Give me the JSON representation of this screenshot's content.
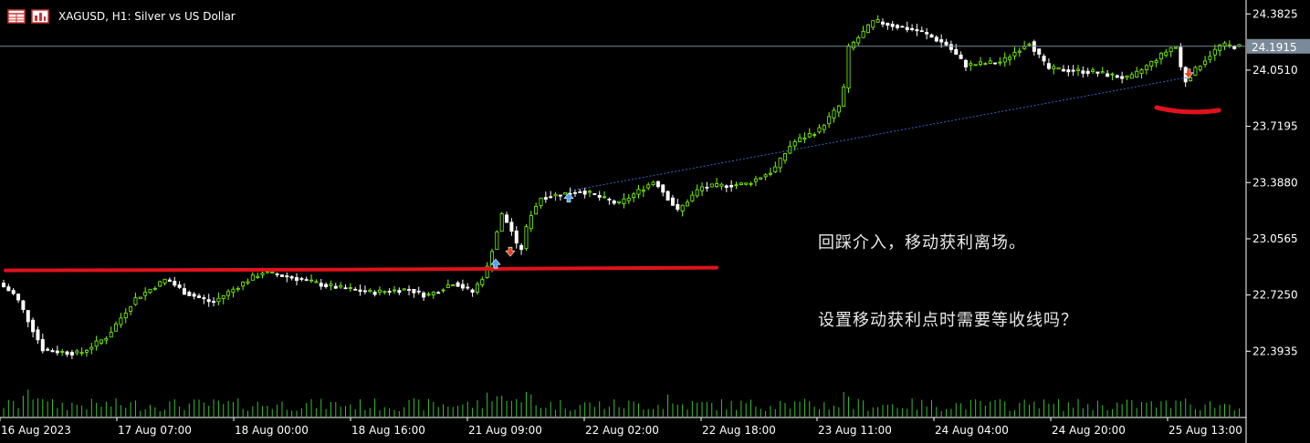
{
  "header": {
    "symbol_title": "XAGUSD, H1:  Silver vs US Dollar",
    "icons": [
      "table-icon",
      "bar-chart-icon"
    ]
  },
  "annotations": {
    "line1": "回踩介入，移动获利离场。",
    "line2": "设置移动获利点时需要等收线吗？"
  },
  "colors": {
    "background": "#000000",
    "bull": "#7CFC00",
    "bear": "#FFFFFF",
    "grid_axis": "#FFFFFF",
    "current_price_line": "#7B8A9A",
    "support_line": "#E0121B",
    "trend_line": "#3A63C8",
    "buy_arrow": "#4AA3F0",
    "sell_arrow": "#E8401C",
    "volume": "#33C233"
  },
  "current_price_label": "24.1915",
  "chart_data": {
    "type": "candlestick",
    "symbol": "XAGUSD",
    "timeframe": "H1",
    "ylim": [
      22.25,
      24.4
    ],
    "price_ticks": [
      "24.3825",
      "24.0510",
      "23.7195",
      "23.3880",
      "23.0565",
      "22.7250",
      "22.3935"
    ],
    "price_tick_values": [
      24.3825,
      24.051,
      23.7195,
      23.388,
      23.0565,
      22.725,
      22.3935
    ],
    "time_ticks": [
      "16 Aug 2023",
      "17 Aug 07:00",
      "18 Aug 00:00",
      "18 Aug 16:00",
      "21 Aug 09:00",
      "22 Aug 02:00",
      "22 Aug 18:00",
      "23 Aug 11:00",
      "24 Aug 04:00",
      "24 Aug 20:00",
      "25 Aug 13:00"
    ],
    "current_price": 24.1915,
    "support_level": 22.87,
    "buy_arrows": [
      22.91,
      23.3
    ],
    "sell_arrows": [
      22.98,
      24.03
    ],
    "trend_line": {
      "from": 23.34,
      "to": 24.01
    }
  }
}
